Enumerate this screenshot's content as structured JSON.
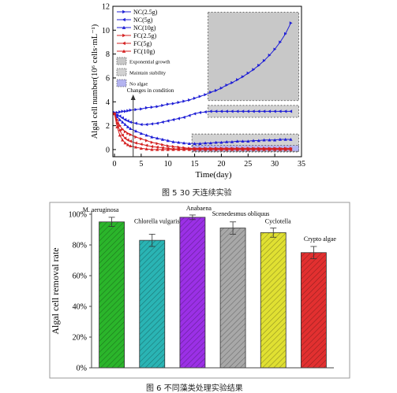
{
  "chart_data": [
    {
      "type": "line",
      "xlabel": "Time(day)",
      "ylabel": "Algal cell number(10⁶ cells·mL⁻¹)",
      "xlim": [
        -0.3,
        35
      ],
      "ylim": [
        -0.6,
        12
      ],
      "xticks": [
        0,
        5,
        10,
        15,
        20,
        25,
        30,
        35
      ],
      "yticks": [
        0,
        2,
        4,
        6,
        8,
        10,
        12
      ],
      "legend_position": "top-left",
      "series": [
        {
          "name": "NC(2.5g)",
          "color": "#1f1fd6",
          "marker": "right-triangle",
          "x": [
            0,
            0.5,
            1,
            1.5,
            2,
            2.5,
            3,
            4,
            5,
            6,
            7,
            8,
            9,
            10,
            11,
            12,
            13,
            14,
            15,
            16,
            17,
            18,
            19,
            20,
            21,
            22,
            23,
            24,
            25,
            26,
            27,
            28,
            29,
            30,
            31,
            32,
            33
          ],
          "y": [
            3.1,
            3.1,
            3.15,
            3.2,
            3.2,
            3.25,
            3.3,
            3.35,
            3.4,
            3.5,
            3.55,
            3.6,
            3.7,
            3.8,
            3.85,
            3.95,
            4.05,
            4.15,
            4.3,
            4.45,
            4.6,
            4.8,
            4.95,
            5.15,
            5.4,
            5.6,
            5.85,
            6.1,
            6.4,
            6.7,
            7.05,
            7.45,
            7.9,
            8.4,
            9.0,
            9.7,
            10.6
          ]
        },
        {
          "name": "NC(5g)",
          "color": "#1f1fd6",
          "marker": "left-triangle",
          "x": [
            0,
            0.5,
            1,
            1.5,
            2,
            2.5,
            3,
            4,
            5,
            6,
            7,
            8,
            9,
            10,
            11,
            12,
            13,
            14,
            15,
            16,
            17,
            18,
            19,
            20,
            21,
            22,
            23,
            24,
            25,
            26,
            27,
            28,
            29,
            30,
            31,
            32,
            33
          ],
          "y": [
            3.0,
            2.9,
            2.8,
            2.65,
            2.5,
            2.4,
            2.3,
            2.2,
            2.1,
            2.1,
            2.15,
            2.2,
            2.3,
            2.4,
            2.5,
            2.6,
            2.7,
            2.85,
            3.0,
            3.1,
            3.15,
            3.2,
            3.2,
            3.2,
            3.2,
            3.2,
            3.2,
            3.2,
            3.2,
            3.2,
            3.2,
            3.2,
            3.2,
            3.2,
            3.2,
            3.2,
            3.2
          ]
        },
        {
          "name": "NC(10g)",
          "color": "#1f1fd6",
          "marker": "triangle",
          "x": [
            0,
            0.5,
            1,
            1.5,
            2,
            2.5,
            3,
            4,
            5,
            6,
            7,
            8,
            9,
            10,
            11,
            12,
            13,
            14,
            15,
            16,
            17,
            18,
            19,
            20,
            21,
            22,
            23,
            24,
            25,
            26,
            27,
            28,
            29,
            30,
            31,
            32,
            33
          ],
          "y": [
            3.0,
            2.75,
            2.5,
            2.3,
            2.1,
            1.9,
            1.75,
            1.55,
            1.35,
            1.2,
            1.05,
            0.95,
            0.85,
            0.75,
            0.65,
            0.6,
            0.55,
            0.5,
            0.5,
            0.5,
            0.55,
            0.55,
            0.6,
            0.6,
            0.65,
            0.65,
            0.7,
            0.7,
            0.7,
            0.75,
            0.75,
            0.8,
            0.8,
            0.8,
            0.85,
            0.85,
            0.85
          ]
        },
        {
          "name": "FC(2.5g)",
          "color": "#d42020",
          "marker": "right-triangle",
          "x": [
            0,
            0.5,
            1,
            1.5,
            2,
            2.5,
            3,
            4,
            5,
            6,
            7,
            8,
            9,
            10,
            11,
            12,
            13,
            14,
            15,
            16,
            17,
            18,
            19,
            20,
            21,
            22,
            23,
            24,
            25,
            26,
            27,
            28,
            29,
            30,
            31,
            32,
            33
          ],
          "y": [
            3.0,
            2.5,
            2.0,
            1.7,
            1.5,
            1.35,
            1.25,
            1.05,
            0.9,
            0.75,
            0.6,
            0.5,
            0.4,
            0.3,
            0.25,
            0.2,
            0.15,
            0.1,
            0.1,
            0.1,
            0.1,
            0.1,
            0.1,
            0.1,
            0.1,
            0.1,
            0.1,
            0.1,
            0.1,
            0.1,
            0.1,
            0.1,
            0.1,
            0.1,
            0.1,
            0.1,
            0.1
          ]
        },
        {
          "name": "FC(5g)",
          "color": "#d42020",
          "marker": "left-triangle",
          "x": [
            0,
            0.5,
            1,
            1.5,
            2,
            2.5,
            3,
            4,
            5,
            6,
            7,
            8,
            9,
            10,
            11,
            12,
            13,
            14,
            15,
            16,
            17,
            18,
            19,
            20,
            21,
            22,
            23,
            24,
            25,
            26,
            27,
            28,
            29,
            30,
            31,
            32,
            33
          ],
          "y": [
            3.0,
            2.2,
            1.6,
            1.2,
            0.95,
            0.8,
            0.7,
            0.55,
            0.45,
            0.35,
            0.25,
            0.2,
            0.15,
            0.1,
            0.05,
            0.05,
            0.05,
            0.05,
            0.05,
            0.05,
            0.05,
            0.05,
            0.05,
            0.05,
            0.05,
            0.05,
            0.05,
            0.05,
            0.05,
            0.05,
            0.05,
            0.05,
            0.05,
            0.05,
            0.05,
            0.05,
            0.05
          ]
        },
        {
          "name": "FC(10g)",
          "color": "#d42020",
          "marker": "triangle",
          "x": [
            0,
            0.5,
            1,
            1.5,
            2,
            2.5,
            3,
            4,
            5,
            6,
            7,
            8,
            9,
            10,
            11,
            12,
            13,
            14,
            15,
            16,
            17,
            18,
            19,
            20,
            21,
            22,
            23,
            24,
            25,
            26,
            27,
            28,
            29,
            30,
            31,
            32,
            33
          ],
          "y": [
            3.0,
            1.9,
            1.2,
            0.8,
            0.55,
            0.4,
            0.3,
            0.2,
            0.1,
            0.05,
            0.0,
            0.0,
            0.0,
            0.0,
            0.0,
            0.0,
            0.0,
            0.0,
            0.0,
            0.0,
            0.0,
            0.0,
            0.0,
            0.0,
            0.0,
            0.0,
            0.0,
            0.0,
            0.0,
            0.0,
            0.0,
            0.0,
            0.0,
            0.0,
            0.0,
            0.0,
            0.0
          ]
        }
      ],
      "regions": [
        {
          "name": "Exponential growth",
          "fill": "#c8c8c8",
          "x": [
            17.5,
            34.5
          ],
          "y": [
            4.1,
            11.5
          ]
        },
        {
          "name": "Maintain stability",
          "fill": "#d2d2d2",
          "x": [
            17.5,
            34.5
          ],
          "y": [
            2.7,
            3.7
          ]
        },
        {
          "name": "Maintain stability",
          "fill": "#d2d2d2",
          "x": [
            14.5,
            34.5
          ],
          "y": [
            -0.2,
            1.3
          ]
        },
        {
          "name": "No algae",
          "fill": "#b4b4f0",
          "x": [
            14.5,
            34.5
          ],
          "y": [
            -0.15,
            0.35
          ]
        }
      ],
      "annotation": {
        "text": "Changes in condition",
        "x": 3.5
      }
    },
    {
      "type": "bar",
      "ylabel": "Algal cell removal rate",
      "ylim": [
        0,
        100
      ],
      "yticks": [
        "0%",
        "20%",
        "40%",
        "60%",
        "80%",
        "100%"
      ],
      "categories": [
        "M. aeruginosa",
        "Chlorella vulgaris",
        "Anabaena",
        "Scenedesmus obliquus",
        "Cyclotella",
        "Crypto algae"
      ],
      "values": [
        95,
        83,
        98,
        91,
        88,
        75
      ],
      "errors": [
        3,
        4,
        1.5,
        4,
        3,
        4
      ],
      "colors": [
        "#2bb52b",
        "#2ab4b4",
        "#9b30e6",
        "#a8a8a8",
        "#e0e032",
        "#e23030"
      ]
    }
  ],
  "caption1": "图 5 30 天连续实验",
  "caption2": "图 6  不同藻类处理实验结果"
}
